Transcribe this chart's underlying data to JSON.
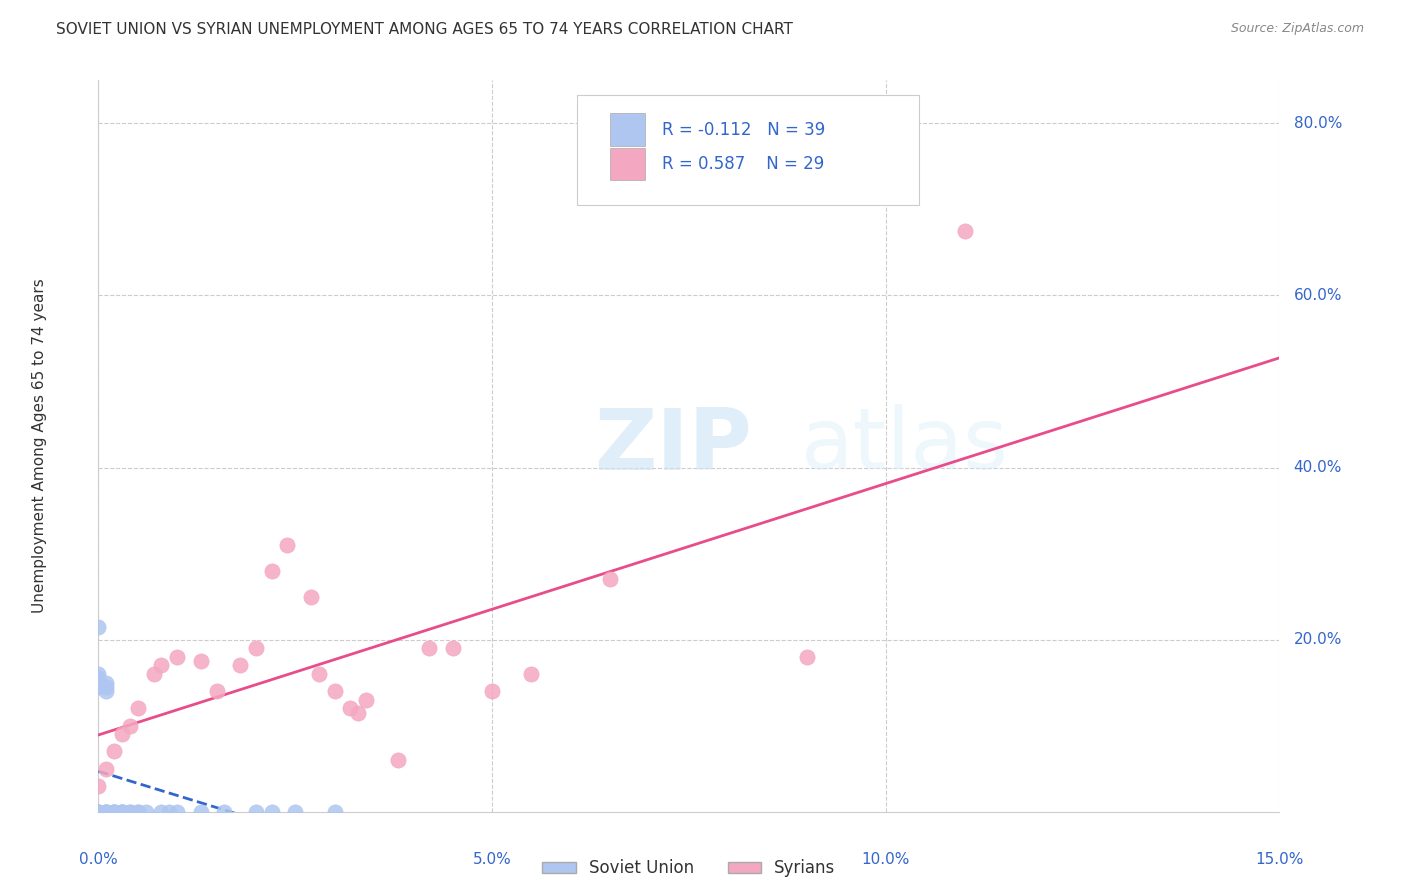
{
  "title": "SOVIET UNION VS SYRIAN UNEMPLOYMENT AMONG AGES 65 TO 74 YEARS CORRELATION CHART",
  "source": "Source: ZipAtlas.com",
  "ylabel_label": "Unemployment Among Ages 65 to 74 years",
  "legend_label1": "Soviet Union",
  "legend_label2": "Syrians",
  "r1": "-0.112",
  "n1": "39",
  "r2": "0.587",
  "n2": "29",
  "watermark_zip": "ZIP",
  "watermark_atlas": "atlas",
  "background_color": "#ffffff",
  "scatter_color_soviet": "#aec6f0",
  "scatter_color_syrian": "#f4a7c0",
  "trendline_color_soviet": "#3366cc",
  "trendline_color_syrian": "#e84c8b",
  "xlim": [
    0.0,
    0.15
  ],
  "ylim": [
    0.0,
    0.85
  ],
  "x_tick_vals": [
    0.0,
    0.05,
    0.1,
    0.15
  ],
  "x_tick_labels": [
    "0.0%",
    "5.0%",
    "10.0%",
    "15.0%"
  ],
  "y_tick_vals": [
    0.2,
    0.4,
    0.6,
    0.8
  ],
  "y_tick_labels": [
    "20.0%",
    "40.0%",
    "60.0%",
    "80.0%"
  ],
  "soviet_x": [
    0.0,
    0.0,
    0.0,
    0.0,
    0.0,
    0.0,
    0.0,
    0.0,
    0.0,
    0.0,
    0.001,
    0.001,
    0.001,
    0.001,
    0.001,
    0.001,
    0.001,
    0.002,
    0.002,
    0.002,
    0.002,
    0.003,
    0.003,
    0.003,
    0.003,
    0.004,
    0.004,
    0.005,
    0.005,
    0.006,
    0.008,
    0.009,
    0.01,
    0.013,
    0.016,
    0.02,
    0.022,
    0.025,
    0.03
  ],
  "soviet_y": [
    0.215,
    0.16,
    0.155,
    0.15,
    0.145,
    0.0,
    0.0,
    0.0,
    0.0,
    0.0,
    0.15,
    0.145,
    0.14,
    0.0,
    0.0,
    0.0,
    0.0,
    0.0,
    0.0,
    0.0,
    0.0,
    0.0,
    0.0,
    0.0,
    0.0,
    0.0,
    0.0,
    0.0,
    0.0,
    0.0,
    0.0,
    0.0,
    0.0,
    0.0,
    0.0,
    0.0,
    0.0,
    0.0,
    0.0
  ],
  "syrian_x": [
    0.0,
    0.001,
    0.002,
    0.003,
    0.004,
    0.005,
    0.007,
    0.008,
    0.01,
    0.013,
    0.015,
    0.018,
    0.02,
    0.022,
    0.024,
    0.027,
    0.028,
    0.03,
    0.032,
    0.033,
    0.034,
    0.038,
    0.042,
    0.045,
    0.05,
    0.055,
    0.065,
    0.09,
    0.11
  ],
  "syrian_y": [
    0.03,
    0.05,
    0.07,
    0.09,
    0.1,
    0.12,
    0.16,
    0.17,
    0.18,
    0.175,
    0.14,
    0.17,
    0.19,
    0.28,
    0.31,
    0.25,
    0.16,
    0.14,
    0.12,
    0.115,
    0.13,
    0.06,
    0.19,
    0.19,
    0.14,
    0.16,
    0.27,
    0.18,
    0.675
  ]
}
